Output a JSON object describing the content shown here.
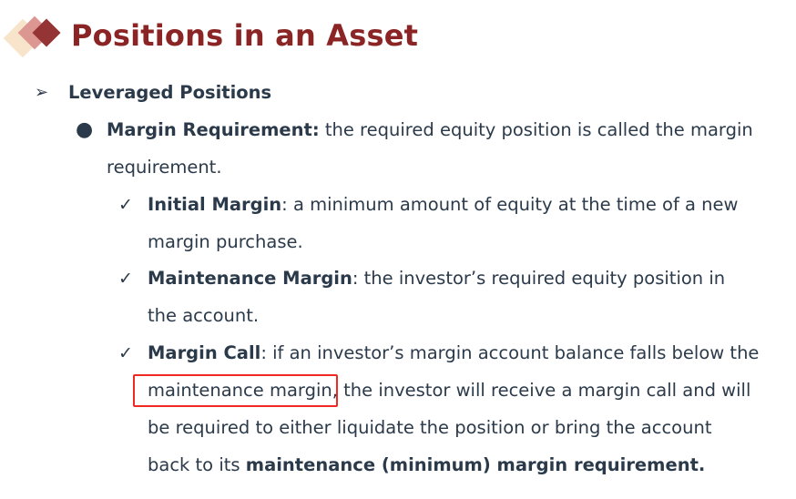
{
  "title": "Positions in an Asset",
  "colors": {
    "title": "#8b2525",
    "text": "#2b3a4a",
    "highlight_box": "#ee2a22"
  },
  "level1": {
    "icon": "arrow-bullet-icon",
    "text": "Leveraged Positions"
  },
  "level2": {
    "icon": "dot-bullet-icon",
    "term": "Margin Requirement:",
    "line1": " the required equity position is called the margin",
    "line2": "requirement."
  },
  "items": [
    {
      "icon": "check-icon",
      "term": "Initial Margin",
      "line1": ": a minimum amount of equity at the time of a new",
      "line2": "margin purchase."
    },
    {
      "icon": "check-icon",
      "term": "Maintenance Margin",
      "line1": ": the investor’s required equity position in",
      "line2": "the account."
    },
    {
      "icon": "check-icon",
      "term": "Margin Call",
      "line1": ": if an investor’s margin account balance falls below the",
      "line2a": "maintenance margin",
      "line2b": ", the investor will receive a margin call and will",
      "line3": "be required to either liquidate the position or bring the account",
      "line4a": "back to its ",
      "line4b": "maintenance (minimum) margin requirement."
    }
  ]
}
